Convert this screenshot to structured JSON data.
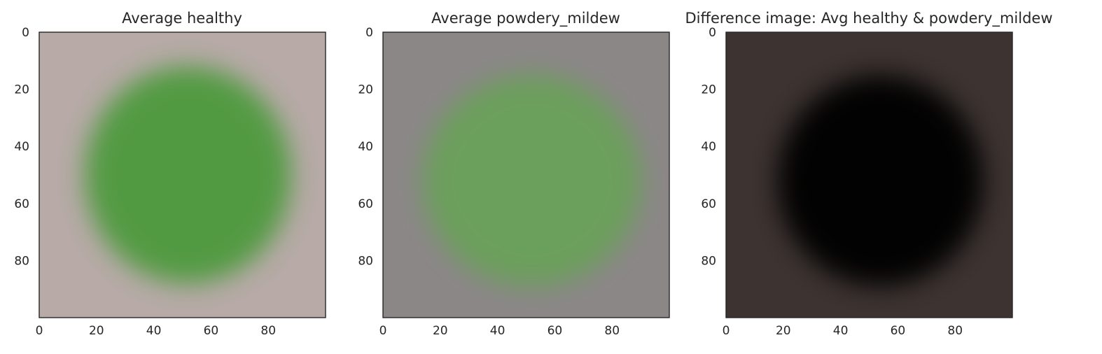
{
  "chart_data": [
    {
      "type": "heatmap",
      "title": "Average healthy",
      "xlabel": "",
      "ylabel": "",
      "xlim": [
        0,
        100
      ],
      "ylim": [
        100,
        0
      ],
      "xticks": [
        0,
        20,
        40,
        60,
        80
      ],
      "yticks": [
        0,
        20,
        40,
        60,
        80
      ],
      "grid": false,
      "background_color": "#b7aaa7",
      "leaf": {
        "center": [
          52,
          50
        ],
        "radius_x": 36,
        "radius_y": 38,
        "color": "#4e9a3c",
        "opacity": 0.95
      }
    },
    {
      "type": "heatmap",
      "title": "Average powdery_mildew",
      "xlabel": "",
      "ylabel": "",
      "xlim": [
        0,
        100
      ],
      "ylim": [
        100,
        0
      ],
      "xticks": [
        0,
        20,
        40,
        60,
        80
      ],
      "yticks": [
        0,
        20,
        40,
        60,
        80
      ],
      "grid": false,
      "background_color": "#8b8787",
      "leaf": {
        "center": [
          52,
          52
        ],
        "radius_x": 38,
        "radius_y": 37,
        "color": "#6aa15a",
        "opacity": 0.95
      }
    },
    {
      "type": "heatmap",
      "title": "Difference image: Avg healthy & powdery_mildew",
      "xlabel": "",
      "ylabel": "",
      "xlim": [
        0,
        100
      ],
      "ylim": [
        100,
        0
      ],
      "xticks": [
        0,
        20,
        40,
        60,
        80
      ],
      "yticks": [
        0,
        20,
        40,
        60,
        80
      ],
      "grid": false,
      "background_color": "#3d3431",
      "leaf": {
        "center": [
          54,
          52
        ],
        "radius_x": 36,
        "radius_y": 37,
        "color": "#050506",
        "opacity": 0.95
      }
    }
  ]
}
